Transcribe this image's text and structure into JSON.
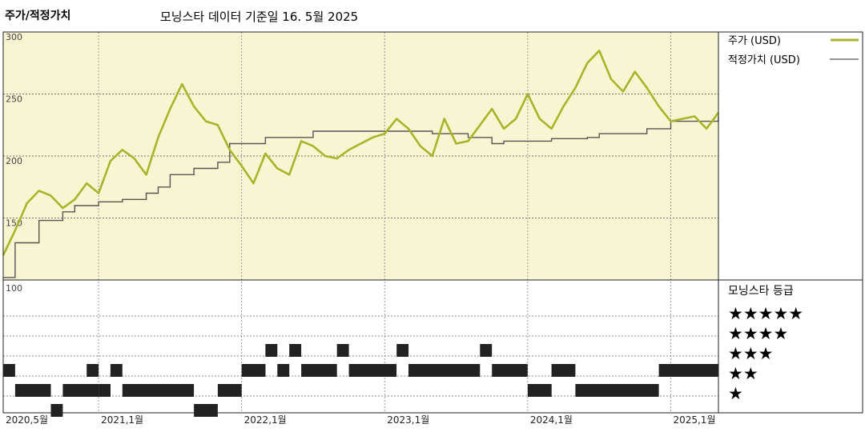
{
  "header": {
    "title": "주가/적정가치",
    "subtitle": "모닝스타 데이터 기준일 16. 5월 2025"
  },
  "legend": {
    "price_label": "주가 (USD)",
    "fair_label": "적정가치 (USD)",
    "rating_title": "모닝스타 등급",
    "stars": [
      "★★★★★",
      "★★★★",
      "★★★",
      "★★",
      "★"
    ]
  },
  "colors": {
    "price": "#a8b52a",
    "fair": "#555555",
    "price_panel_bg": "#f8f5d2",
    "rating_bar": "#222222"
  },
  "chart_data": {
    "type": "line",
    "x_ticks": [
      "2020,5월",
      "2021,1월",
      "2022,1월",
      "2023,1월",
      "2024,1월",
      "2025,1월"
    ],
    "y_ticks": [
      "300",
      "250",
      "200",
      "150",
      "100"
    ],
    "ylim": [
      100,
      300
    ],
    "xlim": [
      "2020-05",
      "2025-05"
    ],
    "series": [
      {
        "name": "주가 (USD)",
        "x": [
          "2020-05",
          "2020-06",
          "2020-07",
          "2020-08",
          "2020-09",
          "2020-10",
          "2020-11",
          "2020-12",
          "2021-01",
          "2021-02",
          "2021-03",
          "2021-04",
          "2021-05",
          "2021-06",
          "2021-07",
          "2021-08",
          "2021-09",
          "2021-10",
          "2021-11",
          "2021-12",
          "2022-01",
          "2022-02",
          "2022-03",
          "2022-04",
          "2022-05",
          "2022-06",
          "2022-07",
          "2022-08",
          "2022-09",
          "2022-10",
          "2022-11",
          "2022-12",
          "2023-01",
          "2023-02",
          "2023-03",
          "2023-04",
          "2023-05",
          "2023-06",
          "2023-07",
          "2023-08",
          "2023-09",
          "2023-10",
          "2023-11",
          "2023-12",
          "2024-01",
          "2024-02",
          "2024-03",
          "2024-04",
          "2024-05",
          "2024-06",
          "2024-07",
          "2024-08",
          "2024-09",
          "2024-10",
          "2024-11",
          "2024-12",
          "2025-01",
          "2025-02",
          "2025-03",
          "2025-04",
          "2025-05"
        ],
        "values": [
          120,
          140,
          162,
          172,
          168,
          158,
          165,
          178,
          170,
          196,
          205,
          198,
          185,
          215,
          238,
          258,
          240,
          228,
          225,
          205,
          192,
          178,
          202,
          190,
          185,
          212,
          208,
          200,
          198,
          205,
          210,
          215,
          218,
          230,
          222,
          208,
          200,
          230,
          210,
          212,
          225,
          238,
          222,
          230,
          250,
          230,
          222,
          240,
          255,
          275,
          285,
          262,
          252,
          268,
          255,
          240,
          228,
          230,
          232,
          222,
          235
        ]
      },
      {
        "name": "적정가치 (USD)",
        "x": [
          "2020-05",
          "2020-06",
          "2020-08",
          "2020-10",
          "2020-11",
          "2021-01",
          "2021-03",
          "2021-05",
          "2021-06",
          "2021-07",
          "2021-09",
          "2021-11",
          "2021-12",
          "2022-03",
          "2022-07",
          "2022-09",
          "2023-05",
          "2023-08",
          "2023-10",
          "2023-11",
          "2024-01",
          "2024-03",
          "2024-06",
          "2024-07",
          "2024-11",
          "2025-01",
          "2025-05"
        ],
        "values": [
          102,
          130,
          148,
          155,
          160,
          163,
          165,
          170,
          175,
          185,
          190,
          195,
          210,
          215,
          220,
          220,
          218,
          215,
          210,
          212,
          212,
          214,
          215,
          218,
          222,
          228,
          232
        ]
      }
    ],
    "ratings": {
      "stars_levels": [
        "★★★★★",
        "★★★★",
        "★★★",
        "★★",
        "★"
      ],
      "periods": [
        {
          "stars": 3,
          "start": "2020-05",
          "end": "2020-06"
        },
        {
          "stars": 2,
          "start": "2020-06",
          "end": "2020-09"
        },
        {
          "stars": 1,
          "start": "2020-09",
          "end": "2020-10"
        },
        {
          "stars": 2,
          "start": "2020-10",
          "end": "2021-01"
        },
        {
          "stars": 3,
          "start": "2020-12",
          "end": "2021-01"
        },
        {
          "stars": 2,
          "start": "2021-01",
          "end": "2021-02"
        },
        {
          "stars": 3,
          "start": "2021-02",
          "end": "2021-03"
        },
        {
          "stars": 2,
          "start": "2021-03",
          "end": "2021-09"
        },
        {
          "stars": 1,
          "start": "2021-09",
          "end": "2021-11"
        },
        {
          "stars": 2,
          "start": "2021-11",
          "end": "2022-01"
        },
        {
          "stars": 3,
          "start": "2022-01",
          "end": "2022-03"
        },
        {
          "stars": 4,
          "start": "2022-03",
          "end": "2022-04"
        },
        {
          "stars": 3,
          "start": "2022-04",
          "end": "2022-05"
        },
        {
          "stars": 4,
          "start": "2022-05",
          "end": "2022-06"
        },
        {
          "stars": 3,
          "start": "2022-06",
          "end": "2022-09"
        },
        {
          "stars": 4,
          "start": "2022-09",
          "end": "2022-10"
        },
        {
          "stars": 3,
          "start": "2022-10",
          "end": "2023-02"
        },
        {
          "stars": 4,
          "start": "2023-02",
          "end": "2023-03"
        },
        {
          "stars": 3,
          "start": "2023-03",
          "end": "2023-09"
        },
        {
          "stars": 4,
          "start": "2023-09",
          "end": "2023-10"
        },
        {
          "stars": 3,
          "start": "2023-10",
          "end": "2024-01"
        },
        {
          "stars": 2,
          "start": "2024-01",
          "end": "2024-03"
        },
        {
          "stars": 3,
          "start": "2024-03",
          "end": "2024-05"
        },
        {
          "stars": 2,
          "start": "2024-05",
          "end": "2024-12"
        },
        {
          "stars": 3,
          "start": "2024-12",
          "end": "2025-05"
        }
      ]
    },
    "grid": true,
    "legend_position": "right"
  }
}
